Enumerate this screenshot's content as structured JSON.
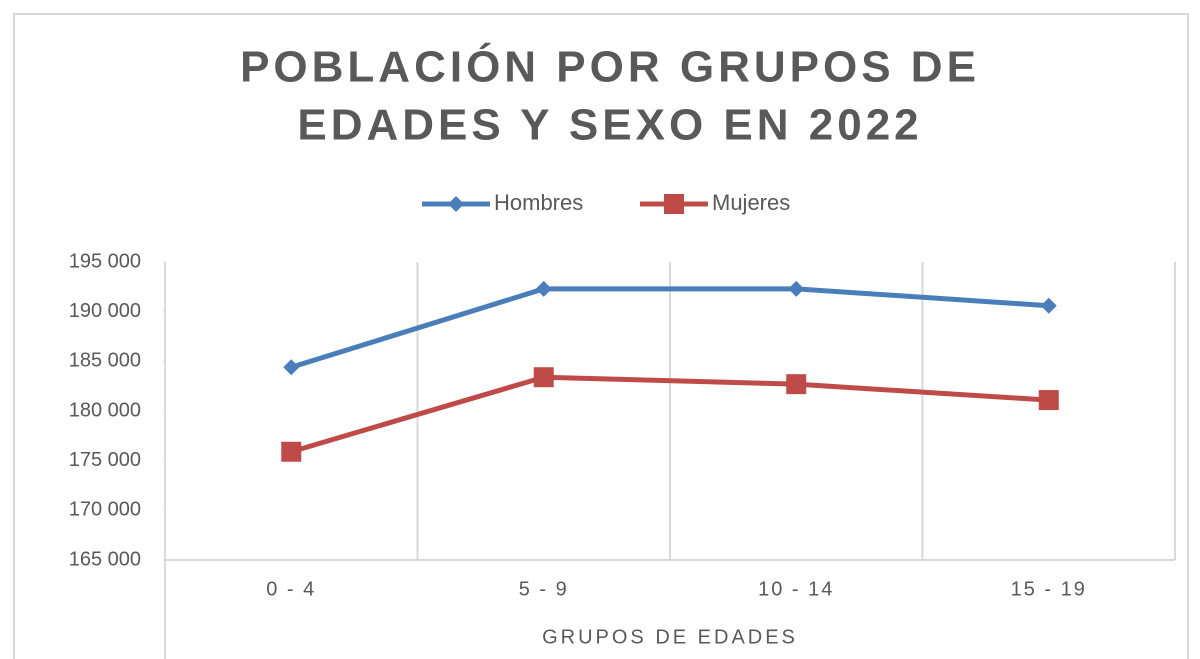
{
  "chart_data": {
    "type": "line",
    "title": [
      "POBLACIÓN POR GRUPOS DE",
      "EDADES Y SEXO EN 2022"
    ],
    "x_label": "GRUPOS DE EDADES",
    "categories": [
      "0 - 4",
      "5 - 9",
      "10 - 14",
      "15 - 19"
    ],
    "series": [
      {
        "name": "Hombres",
        "color": "#4a7ebb",
        "marker": "diamond",
        "values": [
          184400,
          192300,
          192300,
          190600
        ]
      },
      {
        "name": "Mujeres",
        "color": "#be4b48",
        "marker": "square",
        "values": [
          175900,
          183400,
          182700,
          181100
        ]
      }
    ],
    "ylim": [
      165000,
      195000
    ],
    "yticks": [
      {
        "value": 165000,
        "label": "165 000"
      },
      {
        "value": 170000,
        "label": "170 000"
      },
      {
        "value": 175000,
        "label": "175 000"
      },
      {
        "value": 180000,
        "label": "180 000"
      },
      {
        "value": 185000,
        "label": "185 000"
      },
      {
        "value": 190000,
        "label": "190 000"
      },
      {
        "value": 195000,
        "label": "195 000"
      }
    ],
    "legend": "top"
  }
}
